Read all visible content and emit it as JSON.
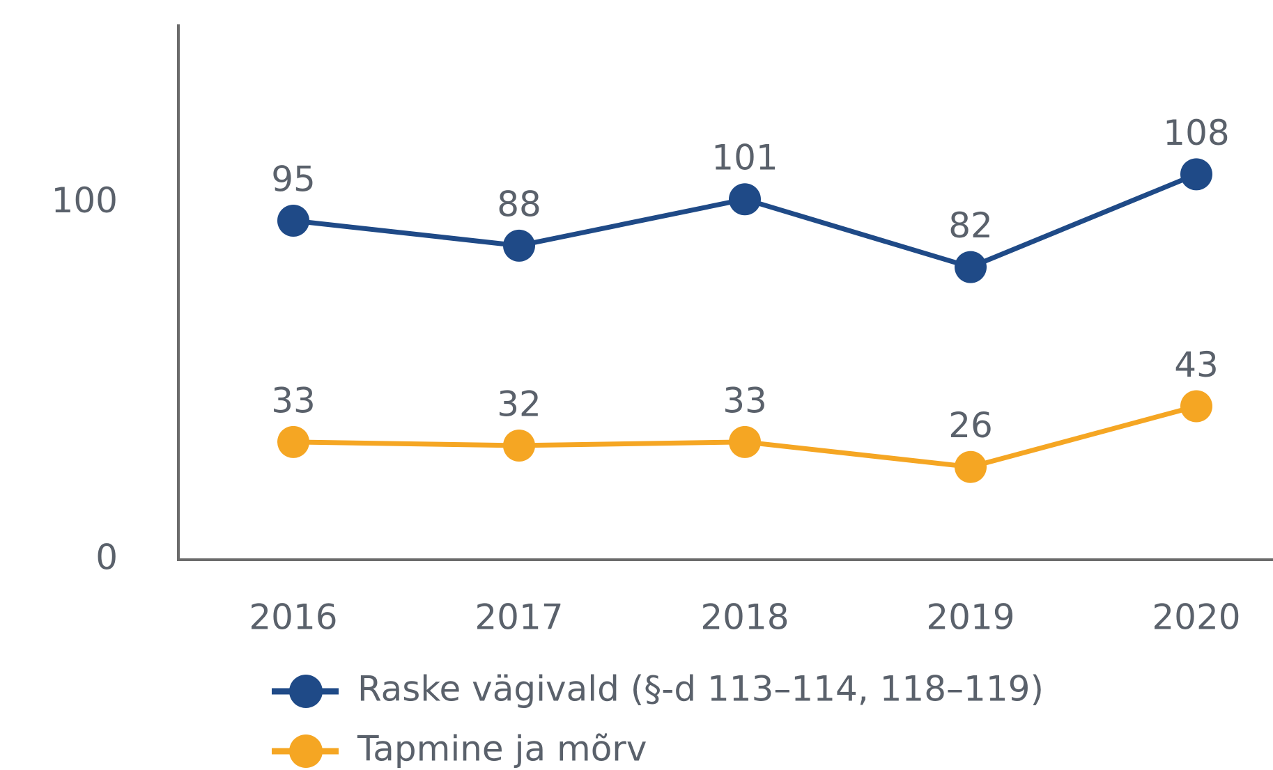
{
  "chart_data": {
    "type": "line",
    "categories": [
      "2016",
      "2017",
      "2018",
      "2019",
      "2020"
    ],
    "series": [
      {
        "name": "Raske vägivald (§-d 113–114, 118–119)",
        "color": "#1f4a87",
        "values": [
          95,
          88,
          101,
          82,
          108
        ]
      },
      {
        "name": "Tapmine ja mõrv",
        "color": "#f5a623",
        "values": [
          33,
          32,
          33,
          26,
          43
        ]
      }
    ],
    "ylim": [
      0,
      150
    ],
    "yticks": [
      0,
      100
    ],
    "grid": false
  }
}
